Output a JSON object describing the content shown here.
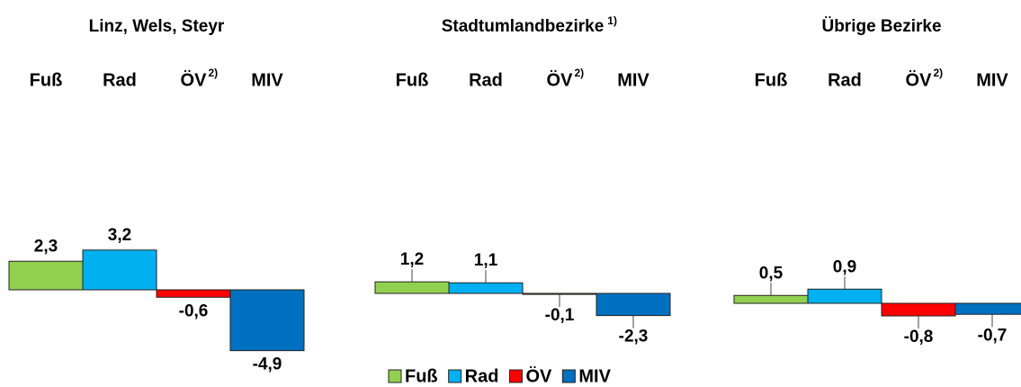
{
  "chart_data": [
    {
      "type": "bar",
      "title": "Linz, Wels, Steyr",
      "categories": [
        "Fuß",
        "Rad",
        "ÖV",
        "MIV"
      ],
      "category_note": "2)",
      "values": [
        2.3,
        3.2,
        -0.6,
        -4.9
      ],
      "value_labels": [
        "2,3",
        "3,2",
        "-0,6",
        "-4,9"
      ],
      "colors": [
        "#92d050",
        "#00b0f0",
        "#ff0000",
        "#0070c0"
      ]
    },
    {
      "type": "bar",
      "title": "Stadtumlandbezirke",
      "title_note": "1)",
      "categories": [
        "Fuß",
        "Rad",
        "ÖV",
        "MIV"
      ],
      "category_note": "2)",
      "values": [
        1.2,
        1.1,
        -0.1,
        -2.3
      ],
      "value_labels": [
        "1,2",
        "1,1",
        "-0,1",
        "-2,3"
      ],
      "colors": [
        "#92d050",
        "#00b0f0",
        "#ff0000",
        "#0070c0"
      ]
    },
    {
      "type": "bar",
      "title": "Übrige Bezirke",
      "categories": [
        "Fuß",
        "Rad",
        "ÖV",
        "MIV"
      ],
      "category_note": "2)",
      "values": [
        0.5,
        0.9,
        -0.8,
        -0.7
      ],
      "value_labels": [
        "0,5",
        "0,9",
        "-0,8",
        "-0,7"
      ],
      "colors": [
        "#92d050",
        "#00b0f0",
        "#ff0000",
        "#0070c0"
      ]
    }
  ],
  "legend": [
    {
      "name": "Fuß",
      "color": "#92d050"
    },
    {
      "name": "Rad",
      "color": "#00b0f0"
    },
    {
      "name": "ÖV",
      "color": "#ff0000"
    },
    {
      "name": "MIV",
      "color": "#0070c0"
    }
  ]
}
